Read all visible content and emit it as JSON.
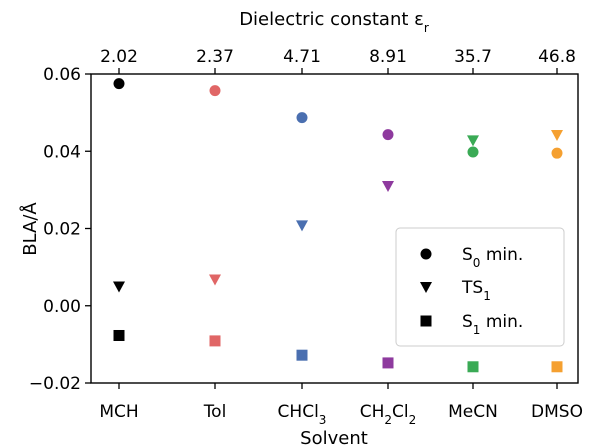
{
  "chart_data": {
    "type": "scatter",
    "categories": [
      "MCH",
      "Tol",
      "CHCl3",
      "CH2Cl2",
      "MeCN",
      "DMSO"
    ],
    "category_labels": [
      {
        "text": "MCH"
      },
      {
        "text": "Tol"
      },
      {
        "text": "CHCl",
        "sub": "3"
      },
      {
        "text": "CH",
        "sub": "2",
        "text2": "Cl",
        "sub2": "2"
      },
      {
        "text": "MeCN"
      },
      {
        "text": "DMSO"
      }
    ],
    "top_tick_labels": [
      "2.02",
      "2.37",
      "4.71",
      "8.91",
      "35.7",
      "46.8"
    ],
    "top_axis_label": {
      "text": "Dielectric constant ε",
      "sub": "r"
    },
    "xlabel": "Solvent",
    "ylabel": "BLA/Å",
    "ylim": [
      -0.02,
      0.06
    ],
    "yticks": [
      -0.02,
      0.0,
      0.02,
      0.04,
      0.06
    ],
    "ytick_labels": [
      "−0.02",
      "0.00",
      "0.02",
      "0.04",
      "0.06"
    ],
    "point_colors": [
      "#000000",
      "#e06666",
      "#4a6fb0",
      "#8e3a9e",
      "#3aaa55",
      "#f5a030"
    ],
    "series": [
      {
        "name": "S0 min.",
        "label": {
          "text": "S",
          "sub": "0",
          "text2": " min."
        },
        "marker": "circle",
        "values": [
          0.0575,
          0.0557,
          0.0487,
          0.0443,
          0.0398,
          0.0395
        ]
      },
      {
        "name": "TS1",
        "label": {
          "text": "TS",
          "sub": "1",
          "text2": ""
        },
        "marker": "triangle-down",
        "values": [
          0.005,
          0.0068,
          0.0208,
          0.031,
          0.0428,
          0.0442
        ]
      },
      {
        "name": "S1 min.",
        "label": {
          "text": "S",
          "sub": "1",
          "text2": " min."
        },
        "marker": "square",
        "values": [
          -0.0077,
          -0.0091,
          -0.0128,
          -0.0148,
          -0.0158,
          -0.0158
        ]
      }
    ],
    "legend_position": "center-right",
    "grid": false
  }
}
